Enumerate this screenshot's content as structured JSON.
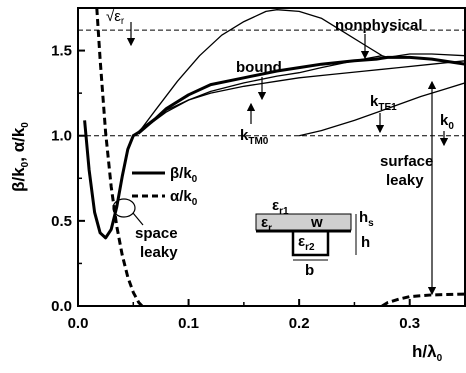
{
  "chart_data": {
    "type": "line",
    "xlabel": "h/λ",
    "xlabel_sub": "0",
    "ylabel_parts": [
      {
        "t": "β/k",
        "sub": "0"
      },
      {
        "t": ", α/k",
        "sub": "0"
      }
    ],
    "xlim": [
      0,
      0.35
    ],
    "ylim": [
      0,
      1.75
    ],
    "x_ticks": [
      0.0,
      0.1,
      0.2,
      0.3
    ],
    "x_tick_labels": [
      "0.0",
      "0.1",
      "0.2",
      "0.3"
    ],
    "y_ticks": [
      0.0,
      0.5,
      1.0,
      1.5
    ],
    "y_tick_labels": [
      "0.0",
      "0.5",
      "1.0",
      "1.5"
    ],
    "reference_lines": [
      {
        "name": "√ε_r",
        "y": 1.62
      },
      {
        "name": "k_0",
        "y": 1.0
      }
    ],
    "series": [
      {
        "name": "β/k_0",
        "style": "solid-thick",
        "x": [
          0.006,
          0.01,
          0.015,
          0.02,
          0.025,
          0.03,
          0.035,
          0.04,
          0.045,
          0.05,
          0.055,
          0.06,
          0.07,
          0.08,
          0.1,
          0.12,
          0.15,
          0.18,
          0.2,
          0.22,
          0.25,
          0.27,
          0.28,
          0.3,
          0.32,
          0.35
        ],
        "y": [
          1.09,
          0.8,
          0.55,
          0.43,
          0.4,
          0.45,
          0.58,
          0.76,
          0.92,
          1.0,
          1.02,
          1.05,
          1.1,
          1.16,
          1.24,
          1.3,
          1.34,
          1.38,
          1.4,
          1.42,
          1.44,
          1.45,
          1.46,
          1.46,
          1.45,
          1.42
        ]
      },
      {
        "name": "α/k_0",
        "style": "dashed-thick",
        "x": [
          0.017,
          0.02,
          0.025,
          0.03,
          0.035,
          0.04,
          0.045,
          0.05,
          0.055,
          0.058
        ],
        "y": [
          1.75,
          1.45,
          1.02,
          0.7,
          0.47,
          0.3,
          0.17,
          0.08,
          0.02,
          0.0
        ]
      },
      {
        "name": "α/k_0 (surface leaky)",
        "style": "dashed-thick",
        "x": [
          0.275,
          0.28,
          0.29,
          0.3,
          0.32,
          0.35
        ],
        "y": [
          0.0,
          0.02,
          0.04,
          0.055,
          0.065,
          0.07
        ]
      },
      {
        "name": "nonphysical",
        "style": "solid-thin",
        "x": [
          0.055,
          0.07,
          0.09,
          0.11,
          0.13,
          0.15,
          0.17,
          0.18,
          0.2,
          0.22,
          0.24,
          0.26,
          0.275,
          0.28,
          0.3,
          0.32,
          0.35
        ],
        "y": [
          1.02,
          1.15,
          1.32,
          1.47,
          1.59,
          1.67,
          1.73,
          1.74,
          1.73,
          1.69,
          1.61,
          1.53,
          1.47,
          1.46,
          1.48,
          1.48,
          1.47
        ]
      },
      {
        "name": "bound",
        "style": "solid-thin",
        "x": [
          0.055,
          0.08,
          0.1,
          0.12,
          0.15,
          0.18,
          0.2,
          0.22,
          0.25,
          0.275
        ],
        "y": [
          1.02,
          1.14,
          1.21,
          1.26,
          1.31,
          1.35,
          1.37,
          1.4,
          1.44,
          1.47
        ]
      },
      {
        "name": "k_TM0",
        "style": "solid-thin",
        "x": [
          0.055,
          0.08,
          0.1,
          0.12,
          0.15,
          0.18,
          0.2,
          0.23,
          0.26,
          0.29,
          0.32,
          0.35
        ],
        "y": [
          1.01,
          1.15,
          1.21,
          1.25,
          1.29,
          1.32,
          1.34,
          1.36,
          1.38,
          1.4,
          1.42,
          1.44
        ]
      },
      {
        "name": "k_TE1",
        "style": "solid-thin",
        "x": [
          0.2,
          0.22,
          0.25,
          0.28,
          0.31,
          0.33,
          0.35
        ],
        "y": [
          1.0,
          1.03,
          1.09,
          1.16,
          1.23,
          1.27,
          1.31
        ]
      }
    ]
  },
  "legend": [
    {
      "label": "β/k",
      "sub": "0",
      "style": "solid"
    },
    {
      "label": "α/k",
      "sub": "0",
      "style": "dashed"
    }
  ],
  "annotations": {
    "sqrt_er": "√ε",
    "sqrt_er_sub": "r",
    "nonphysical": "nonphysical",
    "bound": "bound",
    "ktm0": "k",
    "ktm0_sub": "TM0",
    "kte1": "k",
    "kte1_sub": "TE1",
    "k0": "k",
    "k0_sub": "0",
    "surface": "surface",
    "leaky": "leaky",
    "space": "space",
    "space_leaky": "leaky"
  },
  "inset": {
    "er1": "ε",
    "er1_sub": "r1",
    "er": "ε",
    "er_sub": "r",
    "w": "w",
    "er2": "ε",
    "er2_sub": "r2",
    "b": "b",
    "hs": "h",
    "hs_sub": "s",
    "h": "h"
  }
}
